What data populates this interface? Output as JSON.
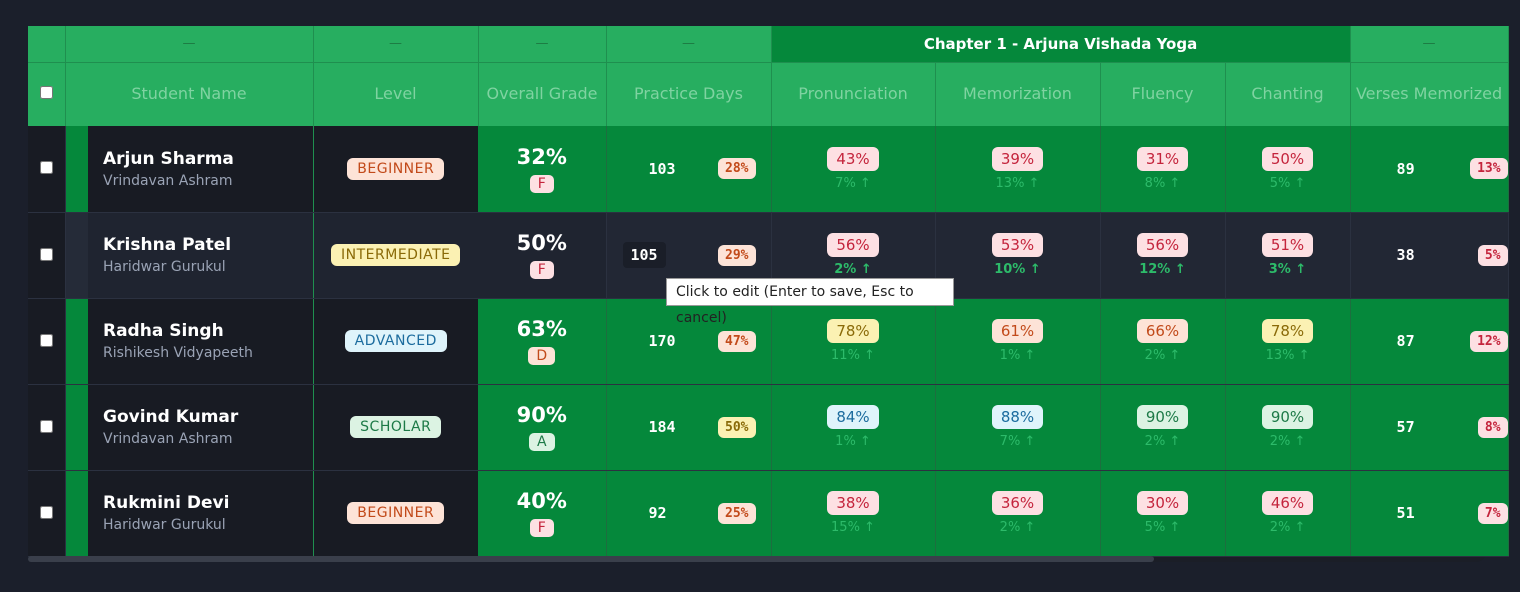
{
  "group_headers": {
    "placeholder": "—",
    "chapter": "Chapter 1 - Arjuna Vishada Yoga"
  },
  "columns": {
    "student_name": "Student Name",
    "level": "Level",
    "overall_grade": "Overall Grade",
    "practice_days": "Practice Days",
    "pronunciation": "Pronunciation",
    "memorization": "Memorization",
    "fluency": "Fluency",
    "chanting": "Chanting",
    "verses_memorized": "Verses Memorized"
  },
  "rows": [
    {
      "name": "Arjun Sharma",
      "location": "Vrindavan Ashram",
      "level": "BEGINNER",
      "overall": "32%",
      "grade": "F",
      "practice_days": "103",
      "practice_pct": "28%",
      "pronunciation": "43%",
      "pronunciation_trend": "7% ↑",
      "memorization": "39%",
      "memorization_trend": "13% ↑",
      "fluency": "31%",
      "fluency_trend": "8% ↑",
      "chanting": "50%",
      "chanting_trend": "5% ↑",
      "verses": "89",
      "verses_pct": "13%"
    },
    {
      "name": "Krishna Patel",
      "location": "Haridwar Gurukul",
      "level": "INTERMEDIATE",
      "overall": "50%",
      "grade": "F",
      "practice_days": "105",
      "practice_pct": "29%",
      "pronunciation": "56%",
      "pronunciation_trend": "2% ↑",
      "memorization": "53%",
      "memorization_trend": "10% ↑",
      "fluency": "56%",
      "fluency_trend": "12% ↑",
      "chanting": "51%",
      "chanting_trend": "3% ↑",
      "verses": "38",
      "verses_pct": "5%"
    },
    {
      "name": "Radha Singh",
      "location": "Rishikesh Vidyapeeth",
      "level": "ADVANCED",
      "overall": "63%",
      "grade": "D",
      "practice_days": "170",
      "practice_pct": "47%",
      "pronunciation": "78%",
      "pronunciation_trend": "11% ↑",
      "memorization": "61%",
      "memorization_trend": "1% ↑",
      "fluency": "66%",
      "fluency_trend": "2% ↑",
      "chanting": "78%",
      "chanting_trend": "13% ↑",
      "verses": "87",
      "verses_pct": "12%"
    },
    {
      "name": "Govind Kumar",
      "location": "Vrindavan Ashram",
      "level": "SCHOLAR",
      "overall": "90%",
      "grade": "A",
      "practice_days": "184",
      "practice_pct": "50%",
      "pronunciation": "84%",
      "pronunciation_trend": "1% ↑",
      "memorization": "88%",
      "memorization_trend": "7% ↑",
      "fluency": "90%",
      "fluency_trend": "2% ↑",
      "chanting": "90%",
      "chanting_trend": "2% ↑",
      "verses": "57",
      "verses_pct": "8%"
    },
    {
      "name": "Rukmini Devi",
      "location": "Haridwar Gurukul",
      "level": "BEGINNER",
      "overall": "40%",
      "grade": "F",
      "practice_days": "92",
      "practice_pct": "25%",
      "pronunciation": "38%",
      "pronunciation_trend": "15% ↑",
      "memorization": "36%",
      "memorization_trend": "2% ↑",
      "fluency": "30%",
      "fluency_trend": "5% ↑",
      "chanting": "46%",
      "chanting_trend": "2% ↑",
      "verses": "51",
      "verses_pct": "7%"
    }
  ],
  "tooltip": "Click to edit (Enter to save, Esc to cancel)",
  "colors": {
    "header_green": "#27ae60",
    "chapter_green": "#05883b",
    "row_green": "#05883b",
    "dark_bg": "#181b23"
  }
}
